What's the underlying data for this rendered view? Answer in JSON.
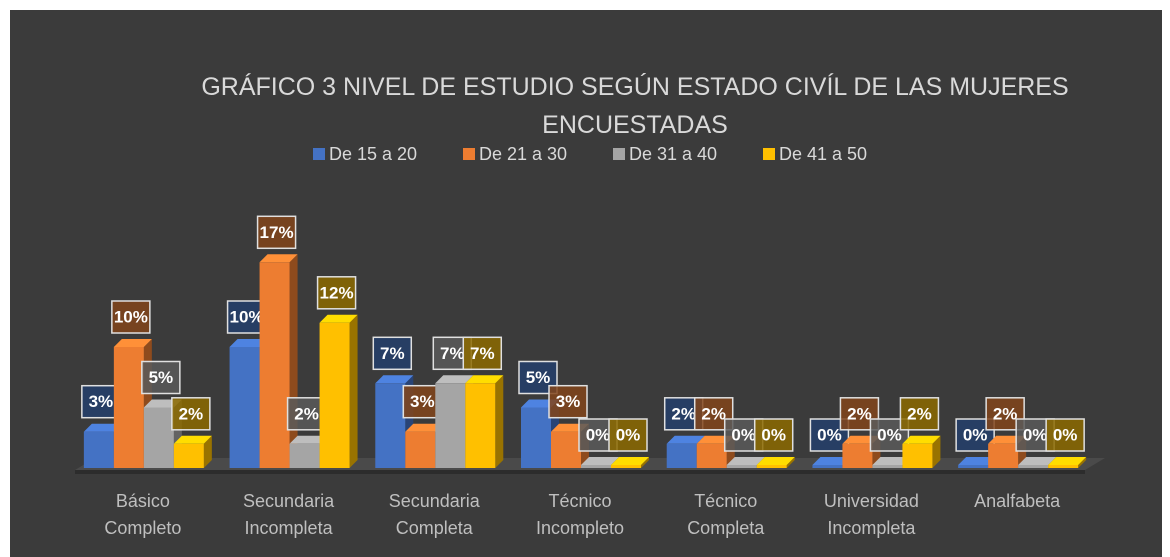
{
  "chart_data": {
    "type": "bar3d",
    "title": "GRÁFICO 3 NIVEL DE ESTUDIO SEGÚN ESTADO CIVÍL DE LAS MUJERES ENCUESTADAS",
    "categories": [
      "Básico Completo",
      "Secundaria Incompleta",
      "Secundaria Completa",
      "Técnico Incompleto",
      "Técnico Completa",
      "Universidad Incompleta",
      "Analfabeta"
    ],
    "ylim": [
      0,
      20
    ],
    "legend": "top",
    "series": [
      {
        "name": "De 15 a 20",
        "color": "#4472c4",
        "values": [
          3,
          10,
          7,
          5,
          2,
          0,
          0
        ],
        "value_labels": [
          "3%",
          "10%",
          "7%",
          "5%",
          "2%",
          "0%",
          "0%"
        ]
      },
      {
        "name": "De 21 a 30",
        "color": "#ed7d31",
        "values": [
          10,
          17,
          3,
          3,
          2,
          2,
          2
        ],
        "value_labels": [
          "10%",
          "17%",
          "3%",
          "3%",
          "2%",
          "2%",
          "2%"
        ]
      },
      {
        "name": "De 31 a 40",
        "color": "#a5a5a5",
        "values": [
          5,
          2,
          7,
          0,
          0,
          0,
          0
        ],
        "value_labels": [
          "5%",
          "2%",
          "7%",
          "0%",
          "0%",
          "0%",
          "0%"
        ]
      },
      {
        "name": "De 41 a 50",
        "color": "#ffc000",
        "values": [
          2,
          12,
          7,
          0,
          0,
          2,
          0
        ],
        "value_labels": [
          "2%",
          "12%",
          "7%",
          "0%",
          "0%",
          "2%",
          "0%"
        ]
      }
    ]
  }
}
